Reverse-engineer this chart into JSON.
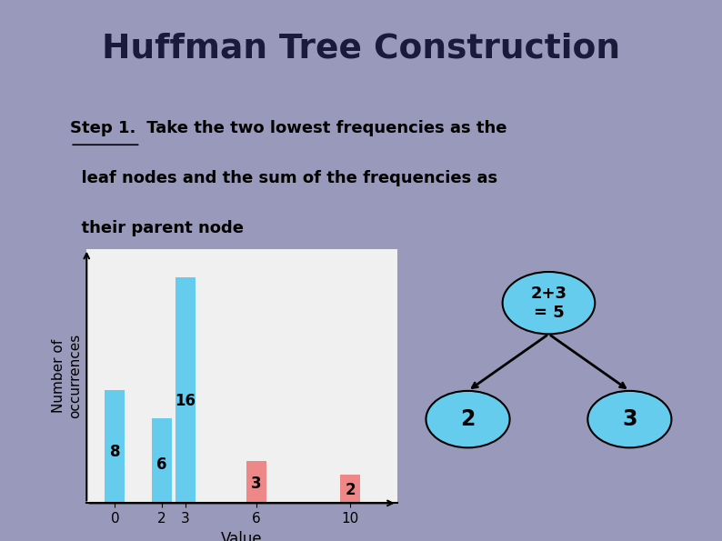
{
  "title": "Huffman Tree Construction",
  "slide_bg_color": "#9999bb",
  "content_bg_color": "#f0f0f0",
  "step1_label": "Step 1.",
  "step1_rest": " Take the two lowest frequencies as the",
  "step2_line": "  leaf nodes and the sum of the frequencies as",
  "step3_line": "  their parent node",
  "bar_categories": [
    0,
    2,
    3,
    6,
    10
  ],
  "bar_values": [
    8,
    6,
    16,
    3,
    2
  ],
  "bar_colors": [
    "#66ccee",
    "#66ccee",
    "#66ccee",
    "#ee8888",
    "#ee8888"
  ],
  "bar_labels": [
    "8",
    "6",
    "16",
    "3",
    "2"
  ],
  "xlabel": "Value",
  "ylabel": "Number of\noccurrences",
  "ylim": [
    0,
    18
  ],
  "node_parent_label": "2+3\n= 5",
  "node_left_label": "2",
  "node_right_label": "3",
  "node_color": "#66ccee",
  "node_edge_color": "#000000"
}
